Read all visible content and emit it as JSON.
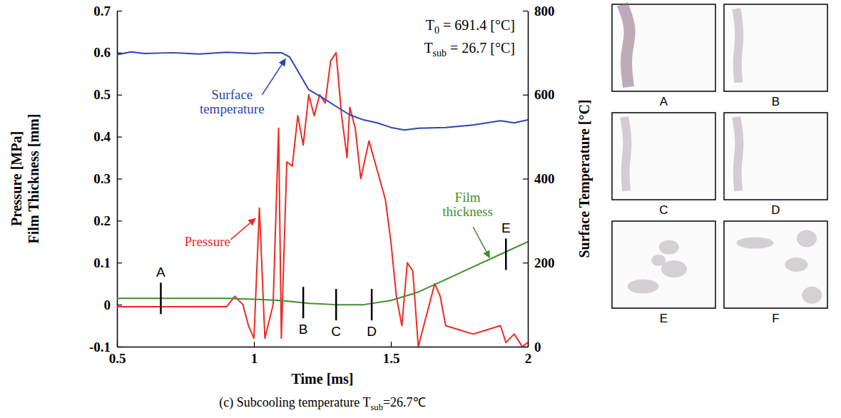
{
  "chart_data": {
    "type": "line",
    "title": [
      {
        "text": "(c) Subcooling temperature T"
      },
      {
        "text": "sub",
        "sub": true
      },
      {
        "text": "=26.7℃"
      }
    ],
    "x_label": "Time [ms]",
    "y_label": [
      "Pressure [MPa]",
      "Film Thickness [mm]"
    ],
    "y2_label": "Surface Temperature [°C]",
    "xlim": [
      0.5,
      2
    ],
    "xticks": [
      0.5,
      1,
      1.5,
      2
    ],
    "ylim": [
      -0.1,
      0.7
    ],
    "yticks": [
      -0.1,
      0,
      0.1,
      0.2,
      0.3,
      0.4,
      0.5,
      0.6,
      0.7
    ],
    "y2lim": [
      0,
      800
    ],
    "y2ticks": [
      0,
      200,
      400,
      600,
      800
    ],
    "annotations": [
      {
        "parts": [
          {
            "text": "T"
          },
          {
            "text": "0",
            "sub": true
          },
          {
            "text": " = 691.4 [°C]"
          }
        ]
      },
      {
        "parts": [
          {
            "text": "T"
          },
          {
            "text": "sub",
            "sub": true
          },
          {
            "text": " = 26.7 [°C]"
          }
        ]
      }
    ],
    "series": [
      {
        "name": "Pressure",
        "color": "#ee2a22",
        "x": [
          0.5,
          0.9,
          0.93,
          0.96,
          0.98,
          1.0,
          1.02,
          1.04,
          1.07,
          1.09,
          1.1,
          1.12,
          1.14,
          1.16,
          1.18,
          1.2,
          1.22,
          1.24,
          1.26,
          1.28,
          1.3,
          1.32,
          1.34,
          1.35,
          1.37,
          1.39,
          1.42,
          1.45,
          1.48,
          1.5,
          1.52,
          1.54,
          1.56,
          1.58,
          1.6,
          1.62,
          1.66,
          1.68,
          1.7,
          1.75,
          1.8,
          1.85,
          1.9,
          1.92,
          1.95,
          1.98,
          2.0
        ],
        "values": [
          -0.005,
          -0.005,
          0.02,
          0.0,
          -0.05,
          -0.08,
          0.23,
          -0.08,
          0.0,
          0.42,
          -0.08,
          0.34,
          0.33,
          0.45,
          0.38,
          0.5,
          0.45,
          0.5,
          0.48,
          0.58,
          0.6,
          0.45,
          0.35,
          0.47,
          0.42,
          0.3,
          0.39,
          0.32,
          0.25,
          0.15,
          0.02,
          -0.05,
          0.1,
          0.08,
          -0.1,
          -0.05,
          0.05,
          0.02,
          -0.05,
          -0.06,
          -0.07,
          -0.06,
          -0.05,
          -0.09,
          -0.07,
          -0.1,
          -0.09
        ]
      },
      {
        "name": "Film thickness",
        "color": "#3f8f2c",
        "x": [
          0.5,
          0.9,
          1.0,
          1.1,
          1.2,
          1.3,
          1.4,
          1.5,
          1.6,
          1.7,
          1.8,
          1.9,
          2.0
        ],
        "values": [
          0.015,
          0.015,
          0.013,
          0.01,
          0.003,
          0.0,
          0.0,
          0.01,
          0.03,
          0.06,
          0.09,
          0.12,
          0.15
        ]
      },
      {
        "name": "Surface temperature",
        "color": "#2f45b0",
        "axis": "y2",
        "x": [
          0.5,
          0.55,
          0.6,
          0.7,
          0.8,
          0.9,
          1.0,
          1.05,
          1.1,
          1.13,
          1.15,
          1.2,
          1.25,
          1.3,
          1.35,
          1.4,
          1.45,
          1.5,
          1.55,
          1.6,
          1.7,
          1.8,
          1.9,
          1.95,
          2.0
        ],
        "values": [
          695,
          702,
          698,
          700,
          697,
          701,
          698,
          700,
          700,
          690,
          668,
          612,
          593,
          572,
          552,
          540,
          533,
          522,
          516,
          520,
          522,
          528,
          538,
          533,
          540
        ]
      }
    ],
    "markers": [
      {
        "label": "A",
        "x": 0.66,
        "y": 0.015
      },
      {
        "label": "B",
        "x": 1.18,
        "y": 0.005
      },
      {
        "label": "C",
        "x": 1.3,
        "y": 0.0
      },
      {
        "label": "D",
        "x": 1.43,
        "y": 0.0
      },
      {
        "label": "E",
        "x": 1.92,
        "y": 0.12
      }
    ],
    "panels": [
      "A",
      "B",
      "C",
      "D",
      "E",
      "F"
    ]
  }
}
